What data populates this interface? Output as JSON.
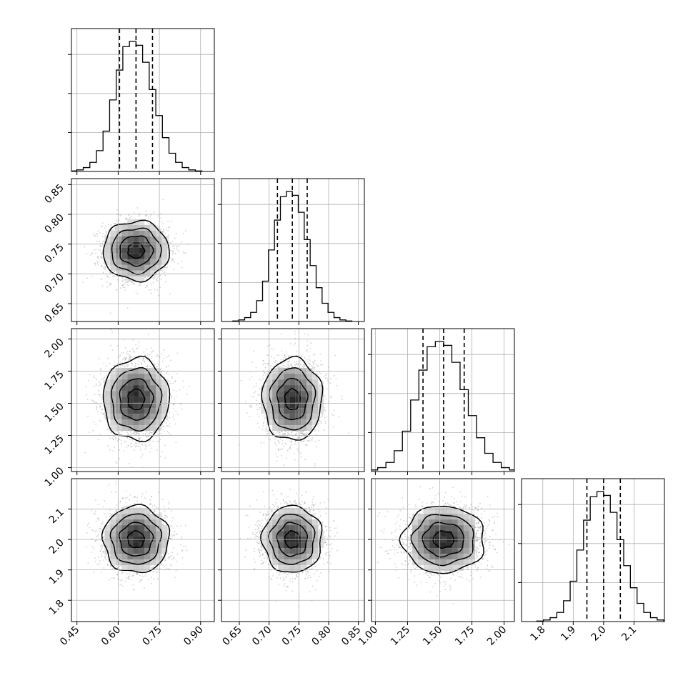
{
  "chart_data": {
    "type": "corner",
    "title": "",
    "grid": true,
    "colors": {
      "line": "#000000",
      "grid": "#b0b0b0",
      "points": "#9a9a9a",
      "quantile": "#000000"
    },
    "parameters": [
      {
        "index": 0,
        "mean": 0.665,
        "sigma": 0.06,
        "range": [
          0.43,
          0.95
        ],
        "ticks": [
          0.45,
          0.6,
          0.75,
          0.9
        ],
        "tick_labels": [
          "0.45",
          "0.60",
          "0.75",
          "0.90"
        ],
        "quantiles": [
          0.605,
          0.665,
          0.725
        ],
        "histogram": [
          0.004,
          0.012,
          0.03,
          0.07,
          0.16,
          0.31,
          0.55,
          0.78,
          0.96,
          1.0,
          0.97,
          0.84,
          0.63,
          0.43,
          0.26,
          0.14,
          0.07,
          0.03,
          0.012,
          0.004
        ]
      },
      {
        "index": 1,
        "mean": 0.739,
        "sigma": 0.025,
        "range": [
          0.62,
          0.86
        ],
        "ticks": [
          0.65,
          0.7,
          0.75,
          0.8,
          0.85
        ],
        "tick_labels": [
          "0.65",
          "0.70",
          "0.75",
          "0.80",
          "0.85"
        ],
        "quantiles": [
          0.714,
          0.739,
          0.764
        ],
        "histogram": [
          0.004,
          0.012,
          0.03,
          0.07,
          0.16,
          0.31,
          0.55,
          0.78,
          0.96,
          1.0,
          0.97,
          0.84,
          0.63,
          0.43,
          0.26,
          0.14,
          0.07,
          0.03,
          0.012,
          0.004
        ]
      },
      {
        "index": 2,
        "mean": 1.53,
        "sigma": 0.16,
        "range": [
          0.97,
          2.08
        ],
        "ticks": [
          1.0,
          1.25,
          1.5,
          1.75,
          2.0
        ],
        "tick_labels": [
          "1.00",
          "1.25",
          "1.50",
          "1.75",
          "2.00"
        ],
        "quantiles": [
          1.37,
          1.53,
          1.69
        ],
        "histogram": [
          0.004,
          0.012,
          0.03,
          0.07,
          0.16,
          0.31,
          0.55,
          0.78,
          0.96,
          1.0,
          0.97,
          0.84,
          0.63,
          0.43,
          0.26,
          0.14,
          0.07,
          0.03,
          0.012,
          0.004
        ]
      },
      {
        "index": 3,
        "mean": 2.0,
        "sigma": 0.055,
        "range": [
          1.73,
          2.2
        ],
        "ticks": [
          1.8,
          1.9,
          2.0,
          2.1
        ],
        "tick_labels": [
          "1.8",
          "1.9",
          "2.0",
          "2.1"
        ],
        "quantiles": [
          1.945,
          2.0,
          2.055
        ],
        "histogram": [
          0.004,
          0.012,
          0.03,
          0.07,
          0.16,
          0.31,
          0.55,
          0.78,
          0.96,
          1.0,
          0.97,
          0.84,
          0.63,
          0.43,
          0.26,
          0.14,
          0.07,
          0.03,
          0.012,
          0.004
        ]
      }
    ],
    "contour_levels_sigma": [
      0.5,
      1.0,
      1.5,
      2.0
    ]
  }
}
